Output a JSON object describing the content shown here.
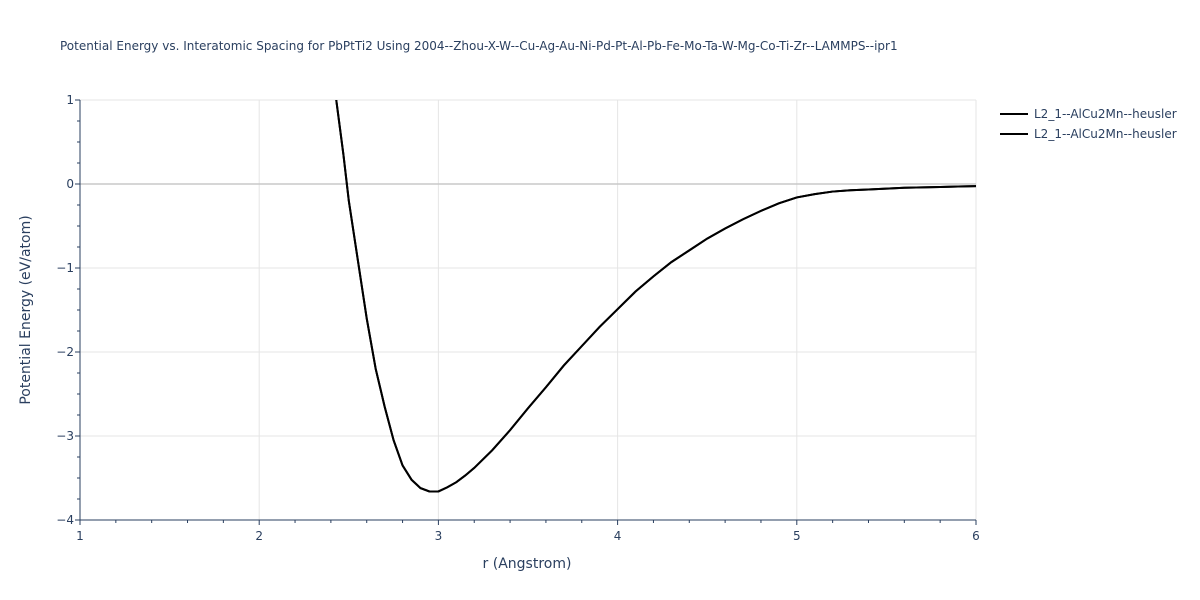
{
  "chart_data": {
    "type": "line",
    "title": "Potential Energy vs. Interatomic Spacing for PbPtTi2 Using 2004--Zhou-X-W--Cu-Ag-Au-Ni-Pd-Pt-Al-Pb-Fe-Mo-Ta-W-Mg-Co-Ti-Zr--LAMMPS--ipr1",
    "xlabel": "r (Angstrom)",
    "ylabel": "Potential Energy (eV/atom)",
    "xlim": [
      1,
      6
    ],
    "ylim": [
      -4,
      1
    ],
    "x_ticks": [
      "1",
      "2",
      "3",
      "4",
      "5",
      "6"
    ],
    "y_ticks": [
      "1",
      "0",
      "−1",
      "−2",
      "−3",
      "−4"
    ],
    "grid": true,
    "legend_position": "top-right",
    "line_color": "#000000",
    "series": [
      {
        "name": "L2_1--AlCu2Mn--heusler",
        "x": [
          2.43,
          2.47,
          2.5,
          2.55,
          2.6,
          2.65,
          2.7,
          2.75,
          2.8,
          2.85,
          2.9,
          2.95,
          3.0,
          3.05,
          3.1,
          3.15,
          3.2,
          3.3,
          3.4,
          3.5,
          3.6,
          3.7,
          3.8,
          3.9,
          4.0,
          4.1,
          4.2,
          4.3,
          4.4,
          4.5,
          4.6,
          4.7,
          4.8,
          4.9,
          5.0,
          5.1,
          5.2,
          5.3,
          5.4,
          5.5,
          5.6,
          5.7,
          5.8,
          5.9,
          6.0
        ],
        "y": [
          1.0,
          0.35,
          -0.2,
          -0.9,
          -1.6,
          -2.2,
          -2.65,
          -3.05,
          -3.35,
          -3.52,
          -3.62,
          -3.66,
          -3.66,
          -3.61,
          -3.55,
          -3.47,
          -3.38,
          -3.17,
          -2.93,
          -2.67,
          -2.42,
          -2.16,
          -1.93,
          -1.7,
          -1.49,
          -1.28,
          -1.1,
          -0.93,
          -0.79,
          -0.65,
          -0.53,
          -0.42,
          -0.32,
          -0.23,
          -0.16,
          -0.12,
          -0.09,
          -0.075,
          -0.065,
          -0.055,
          -0.045,
          -0.04,
          -0.035,
          -0.03,
          -0.025
        ]
      },
      {
        "name": "L2_1--AlCu2Mn--heusler",
        "x": [
          2.43,
          2.47,
          2.5,
          2.55,
          2.6,
          2.65,
          2.7,
          2.75,
          2.8,
          2.85,
          2.9,
          2.95,
          3.0,
          3.05,
          3.1,
          3.15,
          3.2,
          3.3,
          3.4,
          3.5,
          3.6,
          3.7,
          3.8,
          3.9,
          4.0,
          4.1,
          4.2,
          4.3,
          4.4,
          4.5,
          4.6,
          4.7,
          4.8,
          4.9,
          5.0,
          5.1,
          5.2,
          5.3,
          5.4,
          5.5,
          5.6,
          5.7,
          5.8,
          5.9,
          6.0
        ],
        "y": [
          1.0,
          0.35,
          -0.2,
          -0.9,
          -1.6,
          -2.2,
          -2.65,
          -3.05,
          -3.35,
          -3.52,
          -3.62,
          -3.66,
          -3.66,
          -3.61,
          -3.55,
          -3.47,
          -3.38,
          -3.17,
          -2.93,
          -2.67,
          -2.42,
          -2.16,
          -1.93,
          -1.7,
          -1.49,
          -1.28,
          -1.1,
          -0.93,
          -0.79,
          -0.65,
          -0.53,
          -0.42,
          -0.32,
          -0.23,
          -0.16,
          -0.12,
          -0.09,
          -0.075,
          -0.065,
          -0.055,
          -0.045,
          -0.04,
          -0.035,
          -0.03,
          -0.025
        ]
      }
    ]
  }
}
